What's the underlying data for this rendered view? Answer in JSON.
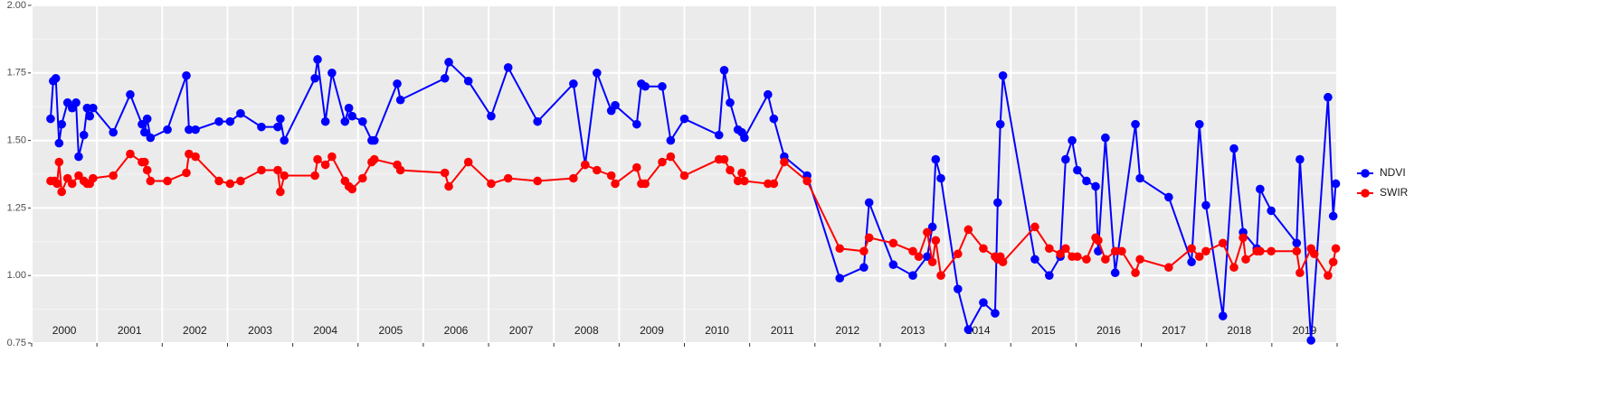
{
  "chart_data": {
    "type": "line",
    "xlim": [
      2000,
      2020
    ],
    "xticks": [
      2000,
      2001,
      2002,
      2003,
      2004,
      2005,
      2006,
      2007,
      2008,
      2009,
      2010,
      2011,
      2012,
      2013,
      2014,
      2015,
      2016,
      2017,
      2018,
      2019,
      2020
    ],
    "year_labels": [
      "2000",
      "2001",
      "2002",
      "2003",
      "2004",
      "2005",
      "2006",
      "2007",
      "2008",
      "2009",
      "2010",
      "2011",
      "2012",
      "2013",
      "2014",
      "2015",
      "2016",
      "2017",
      "2018",
      "2019"
    ],
    "ylim": [
      0.75,
      2.0
    ],
    "yticks": [
      0.75,
      {
        "value": 1.0,
        "label": "1.00"
      },
      1.25,
      {
        "value": 1.5,
        "label": "1.50"
      },
      1.75,
      {
        "value": 2.0,
        "label": "2.00"
      }
    ],
    "grid": true,
    "legend": "right",
    "series": [
      {
        "name": "NDVI",
        "color": "#0000ff",
        "x": [
          2000.29,
          2000.33,
          2000.37,
          2000.42,
          2000.46,
          2000.55,
          2000.62,
          2000.68,
          2000.72,
          2000.8,
          2000.85,
          2000.89,
          2000.94,
          2001.25,
          2001.51,
          2001.69,
          2001.73,
          2001.77,
          2001.82,
          2002.08,
          2002.37,
          2002.41,
          2002.51,
          2002.87,
          2003.04,
          2003.2,
          2003.52,
          2003.77,
          2003.81,
          2003.87,
          2004.34,
          2004.38,
          2004.5,
          2004.6,
          2004.8,
          2004.86,
          2004.91,
          2005.07,
          2005.21,
          2005.25,
          2005.6,
          2005.65,
          2006.33,
          2006.39,
          2006.69,
          2007.04,
          2007.3,
          2007.75,
          2008.3,
          2008.48,
          2008.66,
          2008.88,
          2008.94,
          2009.27,
          2009.34,
          2009.4,
          2009.66,
          2009.79,
          2010.0,
          2010.53,
          2010.61,
          2010.7,
          2010.82,
          2010.88,
          2010.92,
          2011.28,
          2011.37,
          2011.53,
          2011.88,
          2012.38,
          2012.75,
          2012.83,
          2013.2,
          2013.5,
          2013.72,
          2013.8,
          2013.85,
          2013.93,
          2014.19,
          2014.35,
          2014.58,
          2014.76,
          2014.8,
          2014.84,
          2014.88,
          2015.37,
          2015.59,
          2015.76,
          2015.84,
          2015.94,
          2016.02,
          2016.16,
          2016.3,
          2016.34,
          2016.45,
          2016.6,
          2016.91,
          2016.98,
          2017.42,
          2017.77,
          2017.89,
          2017.99,
          2018.25,
          2018.42,
          2018.56,
          2018.77,
          2018.82,
          2018.99,
          2019.38,
          2019.43,
          2019.6,
          2019.86,
          2019.94,
          2019.98
        ],
        "values": [
          1.58,
          1.72,
          1.73,
          1.49,
          1.56,
          1.64,
          1.62,
          1.64,
          1.44,
          1.52,
          1.62,
          1.59,
          1.62,
          1.53,
          1.67,
          1.56,
          1.53,
          1.58,
          1.51,
          1.54,
          1.74,
          1.54,
          1.54,
          1.57,
          1.57,
          1.6,
          1.55,
          1.55,
          1.58,
          1.5,
          1.73,
          1.8,
          1.57,
          1.75,
          1.57,
          1.62,
          1.59,
          1.57,
          1.5,
          1.5,
          1.71,
          1.65,
          1.73,
          1.79,
          1.72,
          1.59,
          1.77,
          1.57,
          1.71,
          1.41,
          1.75,
          1.61,
          1.63,
          1.56,
          1.71,
          1.7,
          1.7,
          1.5,
          1.58,
          1.52,
          1.76,
          1.64,
          1.54,
          1.53,
          1.51,
          1.67,
          1.58,
          1.44,
          1.37,
          0.99,
          1.03,
          1.27,
          1.04,
          1.0,
          1.07,
          1.18,
          1.43,
          1.36,
          0.95,
          0.8,
          0.9,
          0.86,
          1.27,
          1.56,
          1.74,
          1.06,
          1.0,
          1.07,
          1.43,
          1.5,
          1.39,
          1.35,
          1.33,
          1.09,
          1.51,
          1.01,
          1.56,
          1.36,
          1.29,
          1.05,
          1.56,
          1.26,
          0.85,
          1.47,
          1.16,
          1.1,
          1.32,
          1.24,
          1.12,
          1.43,
          0.76,
          1.66,
          1.22,
          1.34
        ]
      },
      {
        "name": "SWIR",
        "color": "#ff0000",
        "x": [
          2000.29,
          2000.35,
          2000.39,
          2000.42,
          2000.46,
          2000.55,
          2000.62,
          2000.72,
          2000.8,
          2000.85,
          2000.89,
          2000.94,
          2001.25,
          2001.51,
          2001.69,
          2001.73,
          2001.77,
          2001.82,
          2002.08,
          2002.37,
          2002.41,
          2002.51,
          2002.87,
          2003.04,
          2003.2,
          2003.52,
          2003.77,
          2003.81,
          2003.87,
          2004.34,
          2004.38,
          2004.5,
          2004.6,
          2004.8,
          2004.86,
          2004.91,
          2005.07,
          2005.21,
          2005.25,
          2005.6,
          2005.65,
          2006.33,
          2006.39,
          2006.69,
          2007.04,
          2007.3,
          2007.75,
          2008.3,
          2008.48,
          2008.66,
          2008.88,
          2008.94,
          2009.27,
          2009.34,
          2009.4,
          2009.66,
          2009.79,
          2010.0,
          2010.53,
          2010.61,
          2010.7,
          2010.82,
          2010.88,
          2010.92,
          2011.28,
          2011.37,
          2011.53,
          2011.88,
          2012.38,
          2012.75,
          2012.83,
          2013.2,
          2013.5,
          2013.59,
          2013.72,
          2013.8,
          2013.85,
          2013.93,
          2014.19,
          2014.35,
          2014.58,
          2014.76,
          2014.8,
          2014.84,
          2014.88,
          2015.37,
          2015.59,
          2015.76,
          2015.84,
          2015.94,
          2016.02,
          2016.16,
          2016.3,
          2016.34,
          2016.45,
          2016.6,
          2016.7,
          2016.91,
          2016.98,
          2017.42,
          2017.77,
          2017.89,
          2017.99,
          2018.25,
          2018.42,
          2018.56,
          2018.6,
          2018.77,
          2018.82,
          2018.99,
          2019.38,
          2019.43,
          2019.6,
          2019.65,
          2019.86,
          2019.94,
          2019.98
        ],
        "values": [
          1.35,
          1.35,
          1.34,
          1.42,
          1.31,
          1.36,
          1.34,
          1.37,
          1.35,
          1.34,
          1.34,
          1.36,
          1.37,
          1.45,
          1.42,
          1.42,
          1.39,
          1.35,
          1.35,
          1.38,
          1.45,
          1.44,
          1.35,
          1.34,
          1.35,
          1.39,
          1.39,
          1.31,
          1.37,
          1.37,
          1.43,
          1.41,
          1.44,
          1.35,
          1.33,
          1.32,
          1.36,
          1.42,
          1.43,
          1.41,
          1.39,
          1.38,
          1.33,
          1.42,
          1.34,
          1.36,
          1.35,
          1.36,
          1.41,
          1.39,
          1.37,
          1.34,
          1.4,
          1.34,
          1.34,
          1.42,
          1.44,
          1.37,
          1.43,
          1.43,
          1.39,
          1.35,
          1.38,
          1.35,
          1.34,
          1.34,
          1.42,
          1.35,
          1.1,
          1.09,
          1.14,
          1.12,
          1.09,
          1.07,
          1.16,
          1.05,
          1.13,
          1.0,
          1.08,
          1.17,
          1.1,
          1.07,
          1.06,
          1.07,
          1.05,
          1.18,
          1.1,
          1.08,
          1.1,
          1.07,
          1.07,
          1.06,
          1.14,
          1.13,
          1.06,
          1.09,
          1.09,
          1.01,
          1.06,
          1.03,
          1.1,
          1.07,
          1.09,
          1.12,
          1.03,
          1.14,
          1.06,
          1.09,
          1.09,
          1.09,
          1.09,
          1.01,
          1.1,
          1.08,
          1.0,
          1.05,
          1.1
        ]
      }
    ]
  }
}
